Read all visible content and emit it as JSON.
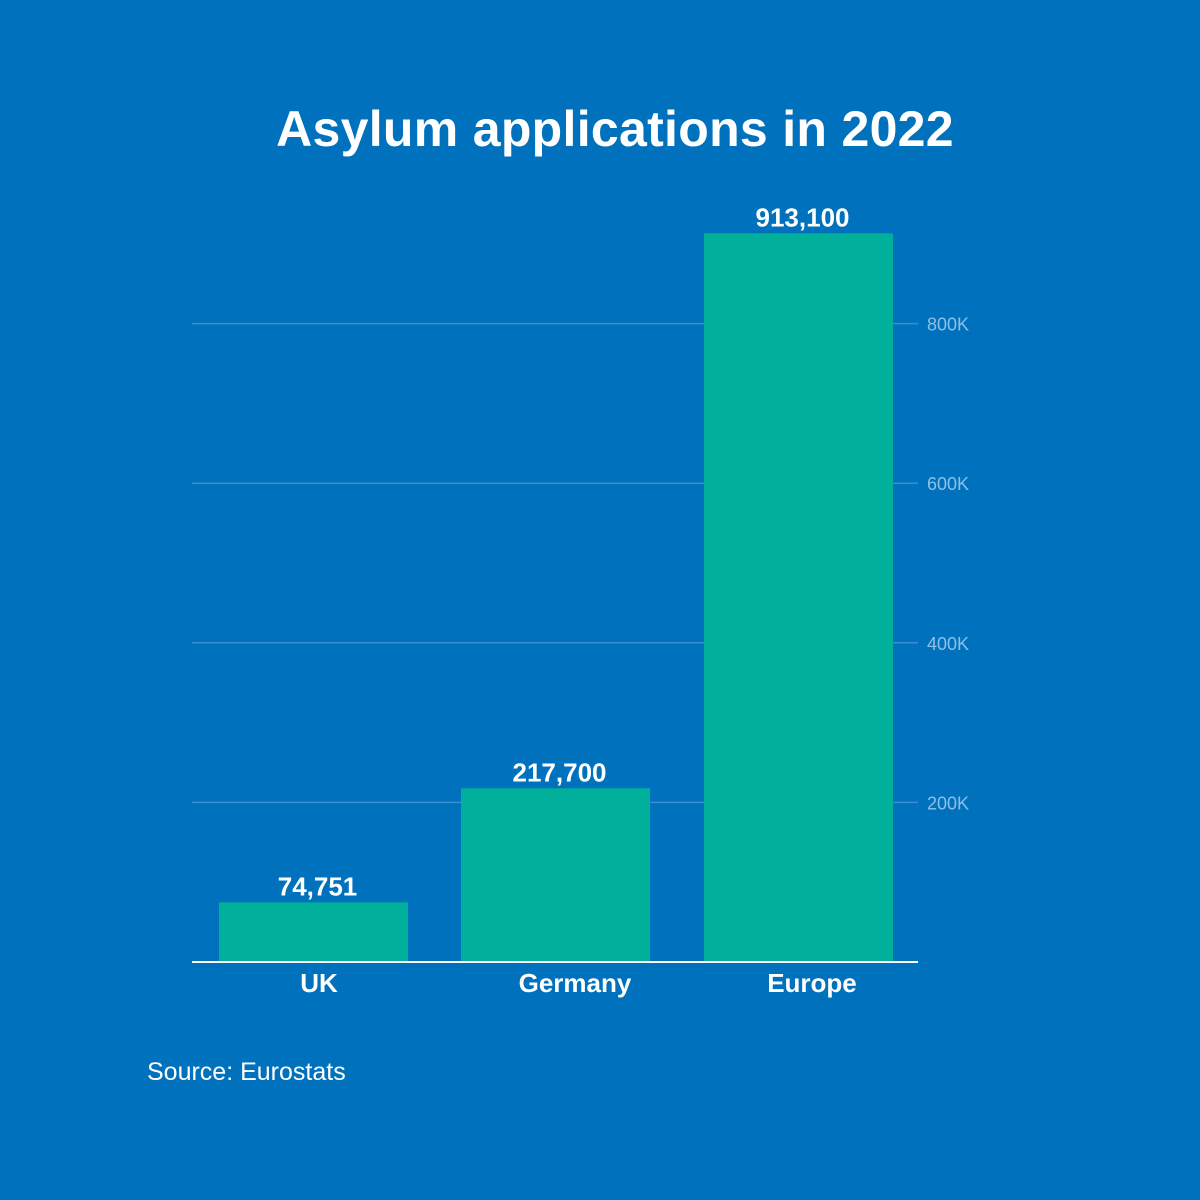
{
  "title": "Asylum applications in 2022",
  "source": "Source: Eurostats",
  "colors": {
    "background": "#0071bc",
    "bar": "#00b09b",
    "gridline": "#3d8fcc",
    "tick_label": "#8ec0e6",
    "text": "#ffffff"
  },
  "chart_data": {
    "type": "bar",
    "title": "Asylum applications in 2022",
    "categories": [
      "UK",
      "Germany",
      "Europe"
    ],
    "values": [
      74751,
      217700,
      913100
    ],
    "value_labels": [
      "74,751",
      "217,700",
      "913,100"
    ],
    "y_ticks": [
      200000,
      400000,
      600000,
      800000
    ],
    "y_tick_labels": [
      "200K",
      "400K",
      "600K",
      "800K"
    ],
    "ylim": [
      0,
      913100
    ],
    "y_axis_position": "right",
    "grid": true,
    "legend": "none"
  }
}
